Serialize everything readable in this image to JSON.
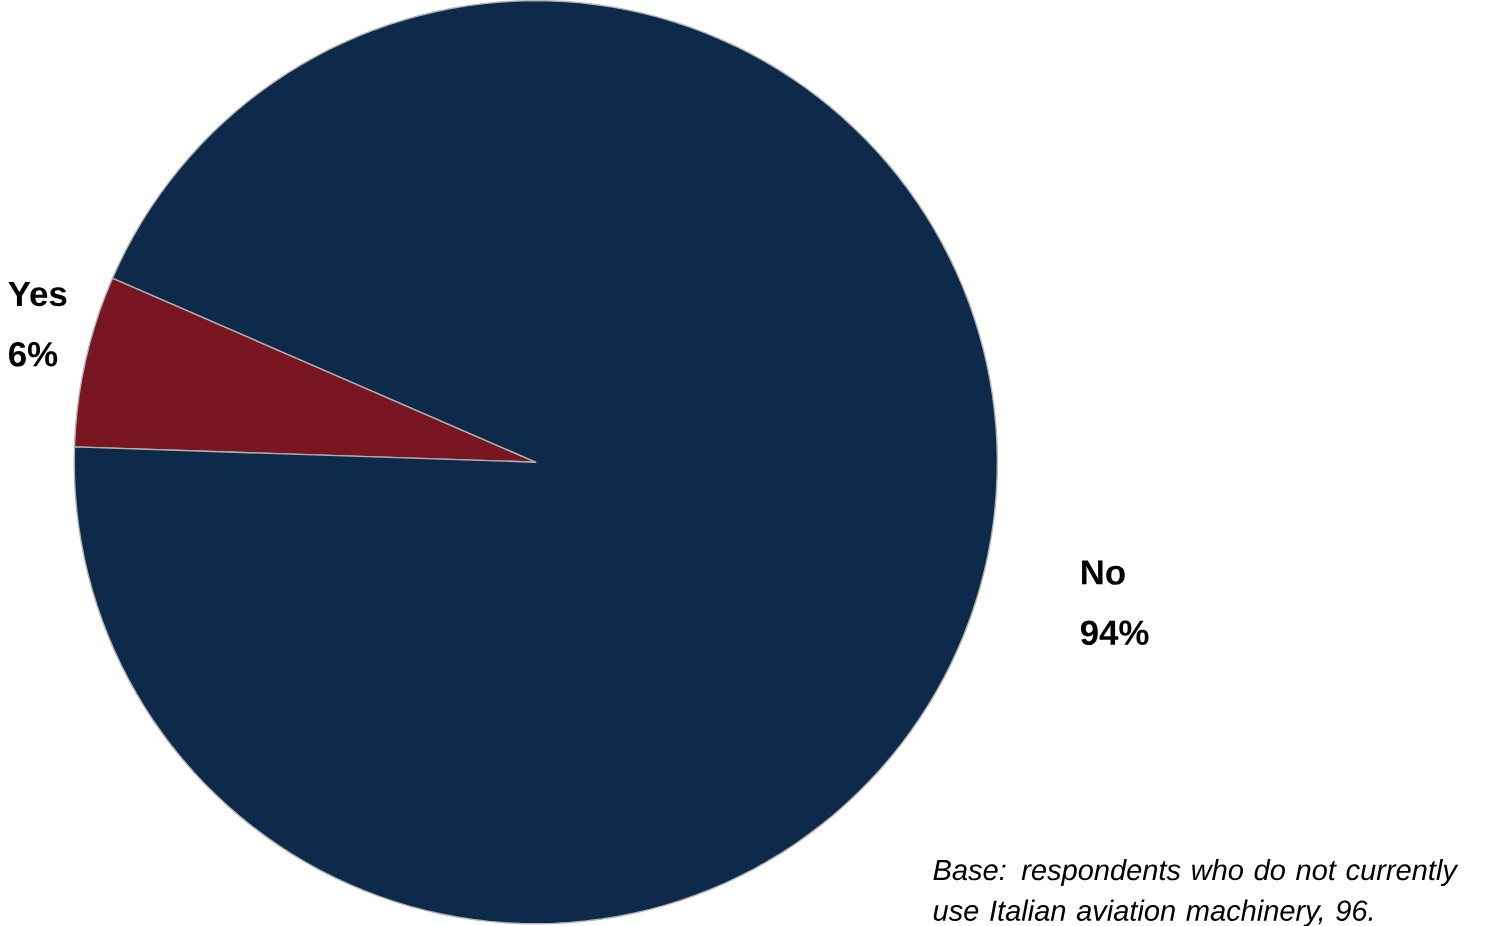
{
  "chart_data": {
    "type": "pie",
    "categories": [
      "Yes",
      "No"
    ],
    "values": [
      6,
      94
    ],
    "colors": [
      "#7a1522",
      "#0e2a4b"
    ],
    "value_labels": [
      "6%",
      "94%"
    ],
    "annotations": [
      "Base: respondents who do not currently use Italian aviation machinery, 96."
    ]
  }
}
